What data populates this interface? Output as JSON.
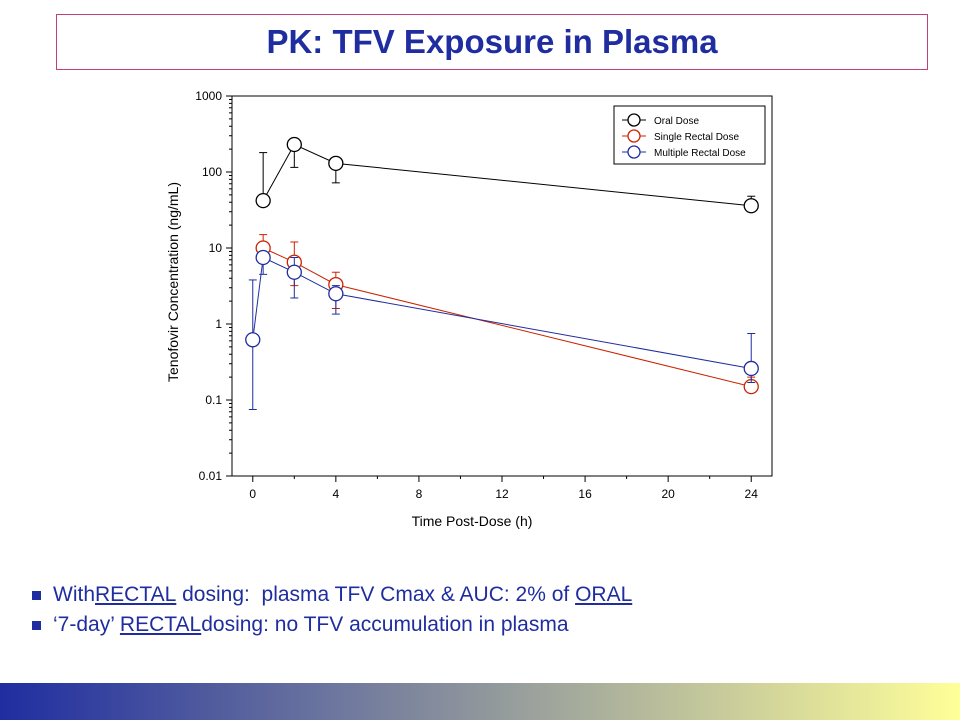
{
  "page": {
    "title": "PK: TFV Exposure in Plasma",
    "accent_color": "#1f2da0",
    "title_border_color": "#c0407a",
    "footer_gradient": [
      "#1f2da0",
      "#ffff99"
    ]
  },
  "bullets": [
    {
      "parts": [
        "With ",
        "RECTAL",
        " dosing:  plasma TFV Cmax & AUC: 2% of ",
        "ORAL"
      ],
      "underlined": [
        1,
        3
      ]
    },
    {
      "parts": [
        "‘7-day’ ",
        "RECTAL",
        " dosing: no TFV accumulation in plasma"
      ],
      "underlined": [
        1
      ]
    }
  ],
  "chart_data": {
    "type": "line",
    "xlabel": "Time Post-Dose (h)",
    "ylabel": "Tenofovir Concentration (ng/mL)",
    "xlim": [
      -1,
      25
    ],
    "ylim": [
      0.01,
      1000
    ],
    "y_scale": "log",
    "x_ticks": [
      0,
      4,
      8,
      12,
      16,
      20,
      24
    ],
    "x_minor_ticks": [
      2,
      6,
      10,
      14,
      18,
      22
    ],
    "y_ticks": [
      0.01,
      0.1,
      1,
      10,
      100,
      1000
    ],
    "y_tick_labels": [
      "0.01",
      "0.1",
      "1",
      "10",
      "100",
      "1000"
    ],
    "x_tick_labels": [
      "0",
      "4",
      "8",
      "12",
      "16",
      "20",
      "24"
    ],
    "legend": "top-right",
    "grid": false,
    "series": [
      {
        "name": "Oral Dose",
        "color": "#000000",
        "x": [
          0.5,
          2,
          4,
          24
        ],
        "y": [
          42,
          230,
          130,
          36
        ],
        "err_high": [
          180,
          240,
          135,
          48
        ],
        "err_low": [
          42,
          115,
          72,
          30
        ]
      },
      {
        "name": "Single Rectal Dose",
        "color": "#cc2200",
        "x": [
          0.5,
          2,
          4,
          24
        ],
        "y": [
          10,
          6.5,
          3.3,
          0.15
        ],
        "err_high": [
          15,
          12,
          4.8,
          0.2
        ],
        "err_low": [
          6.5,
          3.2,
          1.6,
          0.15
        ]
      },
      {
        "name": "Multiple Rectal Dose",
        "color": "#1f2da0",
        "x": [
          0,
          0.5,
          2,
          4,
          24
        ],
        "y": [
          0.62,
          7.5,
          4.8,
          2.5,
          0.26
        ],
        "err_high": [
          3.8,
          8.5,
          7.5,
          3.2,
          0.75
        ],
        "err_low": [
          0.075,
          4.5,
          2.2,
          1.35,
          0.17
        ]
      }
    ]
  }
}
